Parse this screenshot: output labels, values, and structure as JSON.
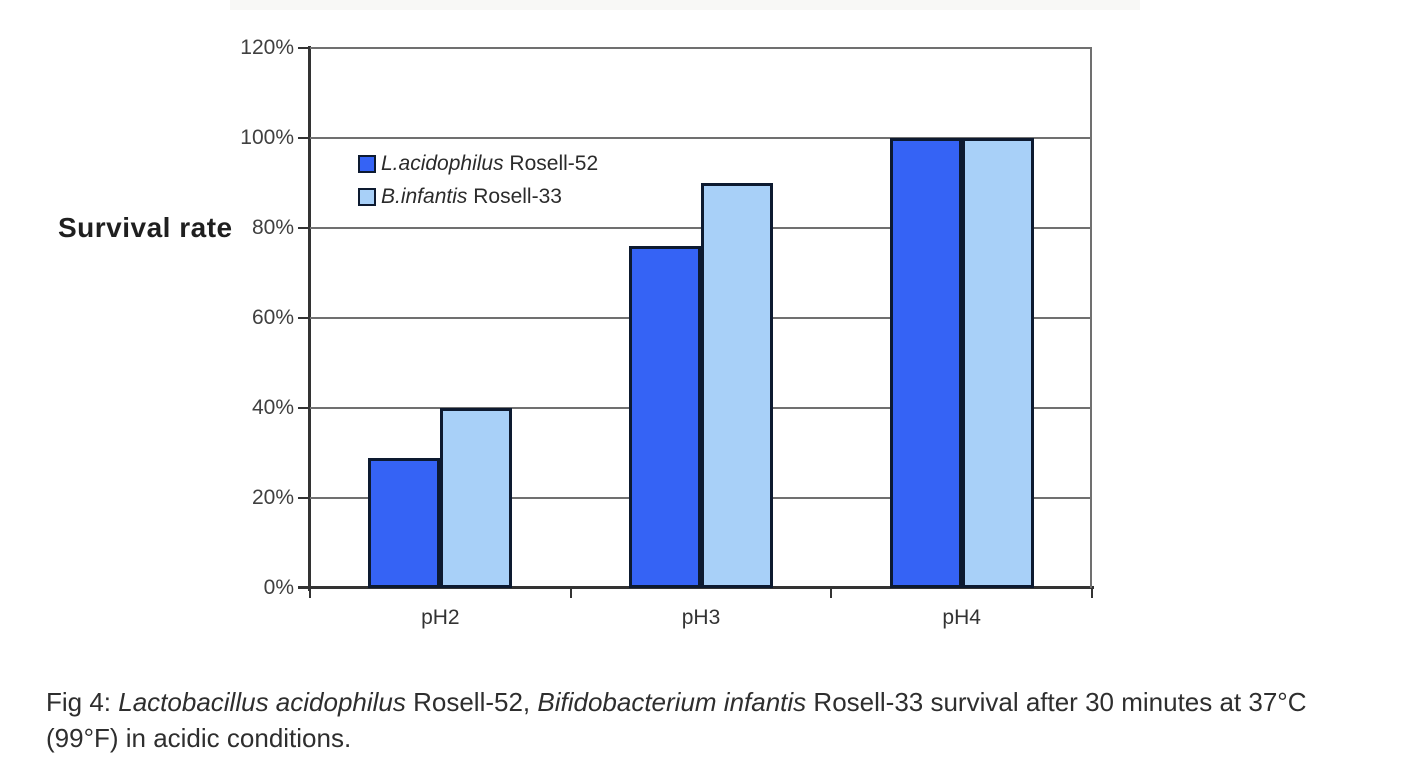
{
  "chart_data": {
    "type": "bar",
    "categories": [
      "pH2",
      "pH3",
      "pH4"
    ],
    "series": [
      {
        "name": "L.acidophilus Rosell-52",
        "legend_italic": "L.acidophilus",
        "legend_regular": " Rosell-52",
        "color": "#3563F5",
        "values": [
          29,
          76,
          100
        ]
      },
      {
        "name": "B.infantis Rosell-33",
        "legend_italic": "B.infantis",
        "legend_regular": " Rosell-33",
        "color": "#A8D0F8",
        "values": [
          40,
          90,
          100
        ]
      }
    ],
    "title": "",
    "xlabel": "",
    "ylabel": "Survival rate",
    "ylim": [
      0,
      120
    ],
    "ytick_step": 20,
    "ytick_suffix": "%",
    "grid": true,
    "legend_position": "upper-left-inside",
    "colors": {
      "bar_border": "#0d1a30",
      "gridline": "#707070",
      "axis": "#333333",
      "tick_label": "#404040",
      "text": "#2e2e2e"
    }
  },
  "caption": {
    "lines": [
      [
        {
          "text": "Fig 4: ",
          "italic": false
        },
        {
          "text": "Lactobacillus acidophilus",
          "italic": true
        },
        {
          "text": " Rosell-52, ",
          "italic": false
        },
        {
          "text": "Bifidobacterium infantis",
          "italic": true
        },
        {
          "text": " Rosell-33 survival after 30 minutes at 37°C",
          "italic": false
        }
      ],
      [
        {
          "text": "(99°F) in acidic conditions.",
          "italic": false
        }
      ]
    ]
  }
}
